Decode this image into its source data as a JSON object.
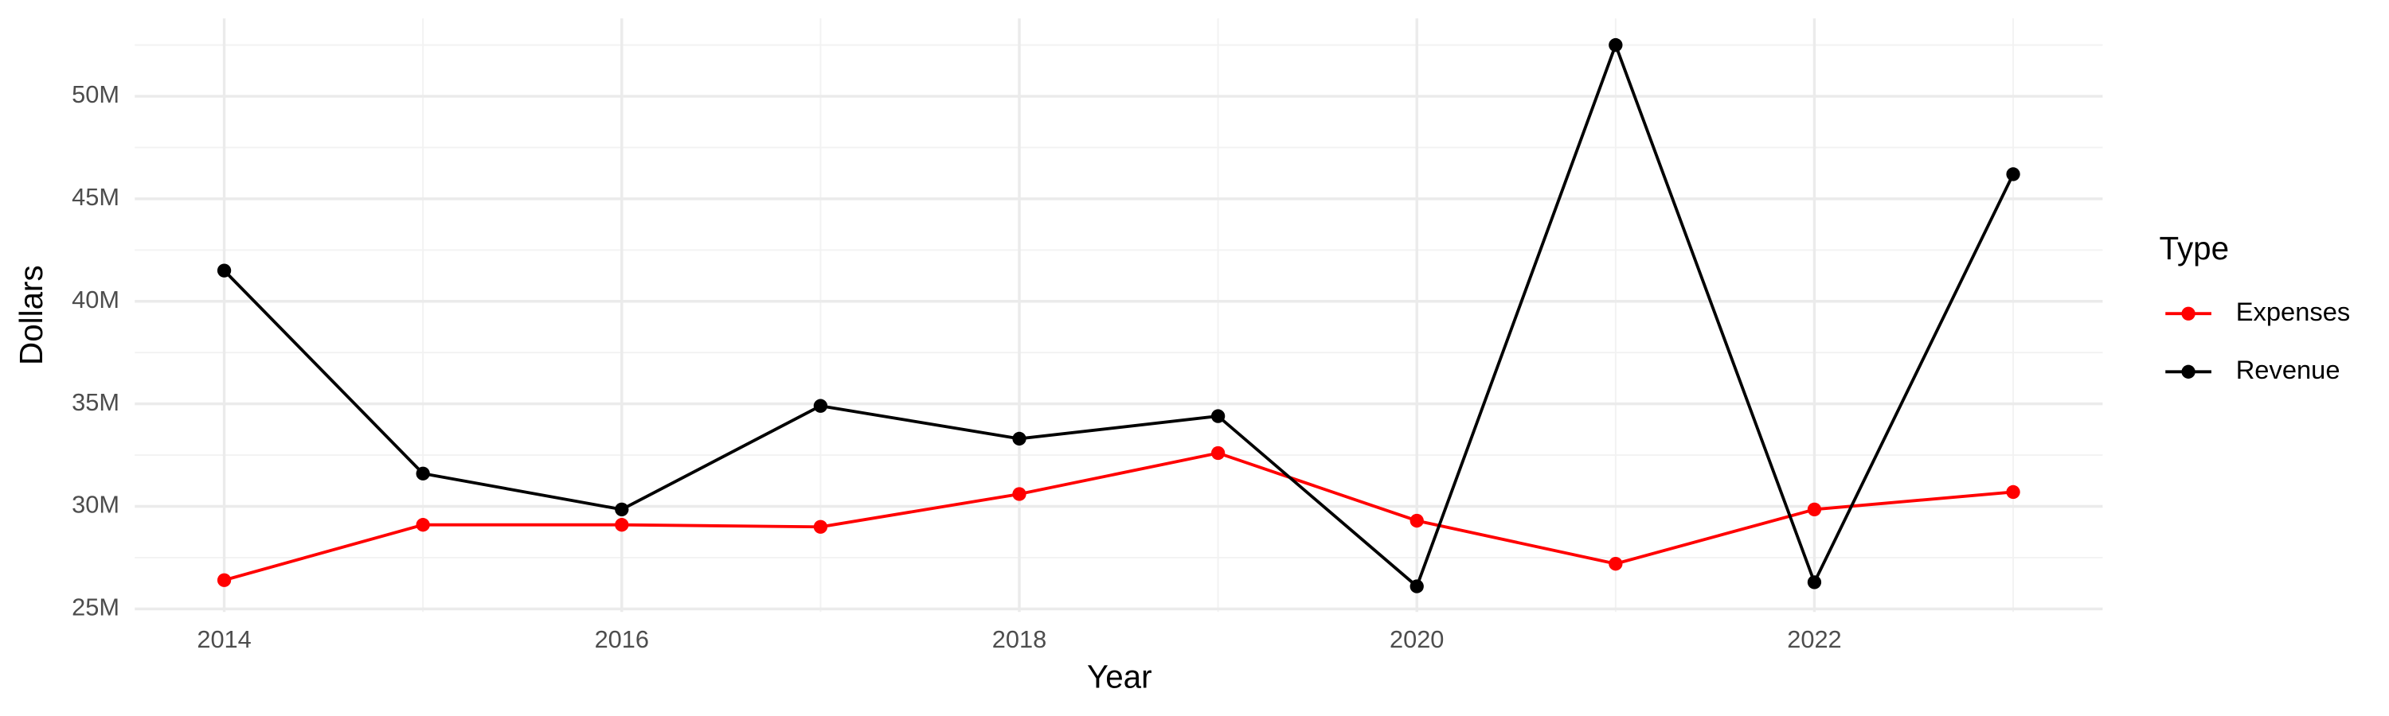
{
  "chart_data": {
    "type": "line",
    "x_label": "Year",
    "y_label": "Dollars",
    "legend_title": "Type",
    "legend_position": "right",
    "grid": true,
    "x": [
      2014,
      2015,
      2016,
      2017,
      2018,
      2019,
      2020,
      2021,
      2022,
      2023
    ],
    "xlim": [
      2013.55,
      2023.45
    ],
    "xticks": [
      2014,
      2016,
      2018,
      2020,
      2022
    ],
    "ylim": [
      24850000,
      53800000
    ],
    "yticks": [
      {
        "value": 25000000,
        "label": "25M"
      },
      {
        "value": 30000000,
        "label": "30M"
      },
      {
        "value": 35000000,
        "label": "35M"
      },
      {
        "value": 40000000,
        "label": "40M"
      },
      {
        "value": 45000000,
        "label": "45M"
      },
      {
        "value": 50000000,
        "label": "50M"
      }
    ],
    "series": [
      {
        "name": "Expenses",
        "color": "#ff0000",
        "values": [
          26400000,
          29100000,
          29100000,
          29000000,
          30600000,
          32600000,
          29300000,
          27200000,
          29850000,
          30700000
        ]
      },
      {
        "name": "Revenue",
        "color": "#000000",
        "values": [
          41500000,
          31600000,
          29850000,
          34900000,
          33300000,
          34400000,
          26100000,
          52500000,
          26300000,
          46200000
        ]
      }
    ]
  }
}
